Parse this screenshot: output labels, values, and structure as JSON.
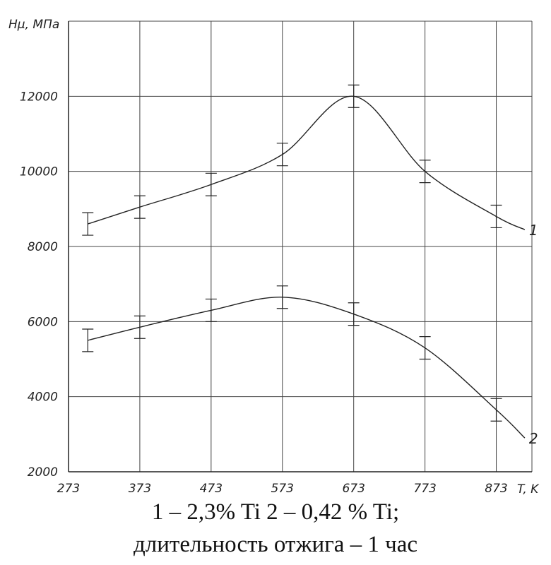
{
  "chart_data": {
    "type": "line",
    "ylabel": "Hμ, МПа",
    "xlabel": "T, K",
    "x_ticks": [
      "273",
      "373",
      "473",
      "573",
      "673",
      "773",
      "873"
    ],
    "y_ticks": [
      "2000",
      "4000",
      "6000",
      "8000",
      "10000",
      "12000"
    ],
    "xlim": [
      273,
      923
    ],
    "ylim": [
      2000,
      14000
    ],
    "grid": true,
    "series": [
      {
        "name": "1",
        "x": [
          300,
          373,
          473,
          573,
          673,
          773,
          873
        ],
        "values": [
          8600,
          9050,
          9650,
          10450,
          12000,
          10000,
          8800
        ],
        "err": [
          300,
          300,
          300,
          300,
          300,
          300,
          300
        ],
        "end": [
          913,
          8450
        ]
      },
      {
        "name": "2",
        "x": [
          300,
          373,
          473,
          573,
          673,
          773,
          873
        ],
        "values": [
          5500,
          5850,
          6300,
          6650,
          6200,
          5300,
          3650
        ],
        "err": [
          300,
          300,
          300,
          300,
          300,
          300,
          300
        ],
        "end": [
          913,
          2900
        ]
      }
    ]
  },
  "caption": {
    "line1": "1 – 2,3% Ti 2 – 0,42 % Ti;",
    "line2": "длительность отжига – 1 час"
  }
}
